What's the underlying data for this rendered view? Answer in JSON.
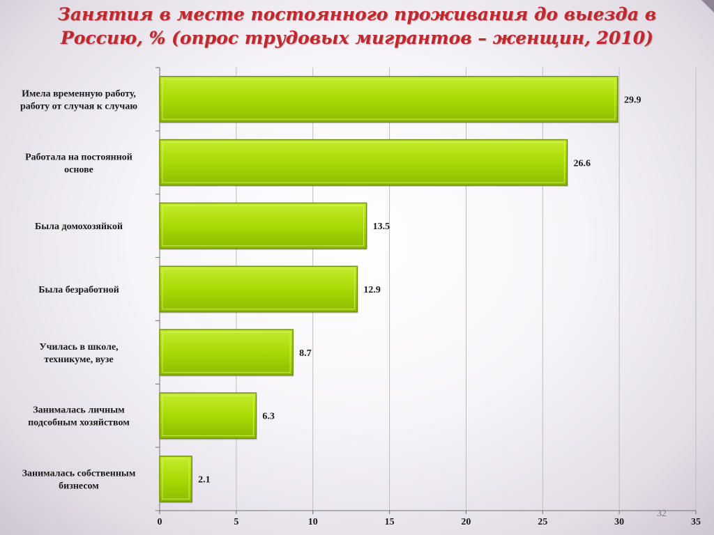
{
  "slide": {
    "number": "32"
  },
  "chart_data": {
    "type": "bar",
    "orientation": "horizontal",
    "title": "Занятия в месте постоянного проживания до выезда в Россию, % (опрос трудовых мигрантов – женщин, 2010)",
    "categories": [
      [
        "Имела временную работу,",
        "работу от случая к случаю"
      ],
      [
        "Работала на постоянной",
        "основе"
      ],
      [
        "Была домохозяйкой"
      ],
      [
        "Была безработной"
      ],
      [
        "Училась в школе,",
        "техникуме, вузе"
      ],
      [
        "Занималась личным",
        "подсобным хозяйством"
      ],
      [
        "Занималась собственным",
        "бизнесом"
      ]
    ],
    "values": [
      29.9,
      26.6,
      13.5,
      12.9,
      8.7,
      6.3,
      2.1
    ],
    "value_labels": [
      "29.9",
      "26.6",
      "13.5",
      "12.9",
      "8.7",
      "6.3",
      "2.1"
    ],
    "xlim": [
      0,
      35
    ],
    "x_ticks": [
      0,
      5,
      10,
      15,
      20,
      25,
      30,
      35
    ],
    "xlabel": "",
    "ylabel": "",
    "grid": true,
    "legend": "none",
    "bar_color": "#a6d600",
    "bar_edge_color": "#6f8f10"
  }
}
